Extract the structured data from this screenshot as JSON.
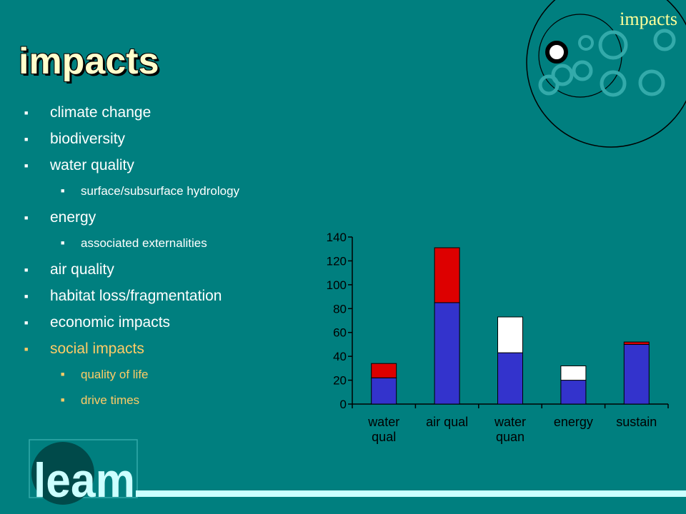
{
  "slide": {
    "title": "impacts",
    "corner_label": "impacts",
    "logo_text": "leam",
    "colors": {
      "background": "#007f7f",
      "text": "#ffffff",
      "accent": "#ffcc66",
      "title": "#ffffcc",
      "rule": "#ccffff"
    }
  },
  "bullets": [
    {
      "text": "climate change",
      "level": 1,
      "accent": false
    },
    {
      "text": "biodiversity",
      "level": 1,
      "accent": false
    },
    {
      "text": "water quality",
      "level": 1,
      "accent": false
    },
    {
      "text": "surface/subsurface hydrology",
      "level": 2,
      "accent": false
    },
    {
      "text": "energy",
      "level": 1,
      "accent": false
    },
    {
      "text": "associated externalities",
      "level": 2,
      "accent": false
    },
    {
      "text": "air quality",
      "level": 1,
      "accent": false
    },
    {
      "text": "habitat loss/fragmentation",
      "level": 1,
      "accent": false
    },
    {
      "text": "economic impacts",
      "level": 1,
      "accent": false
    },
    {
      "text": "social impacts",
      "level": 1,
      "accent": true
    },
    {
      "text": "quality of life",
      "level": 2,
      "accent": true
    },
    {
      "text": "drive times",
      "level": 2,
      "accent": true
    }
  ],
  "chart_data": {
    "type": "bar",
    "stacked": true,
    "title": "",
    "xlabel": "",
    "ylabel": "",
    "ylim": [
      0,
      140
    ],
    "yticks": [
      0,
      20,
      40,
      60,
      80,
      100,
      120,
      140
    ],
    "grid": false,
    "categories": [
      [
        "water",
        "qual"
      ],
      [
        "air qual"
      ],
      [
        "water",
        "quan"
      ],
      [
        "energy"
      ],
      [
        "sustain"
      ]
    ],
    "series": [
      {
        "color": "#3333cc",
        "values": [
          22,
          85,
          43,
          20,
          50
        ]
      },
      {
        "color": "#dd0000",
        "values": [
          12,
          46,
          0,
          0,
          2
        ]
      },
      {
        "color": "#ffffff",
        "values": [
          0,
          0,
          30,
          12,
          0
        ]
      }
    ]
  }
}
